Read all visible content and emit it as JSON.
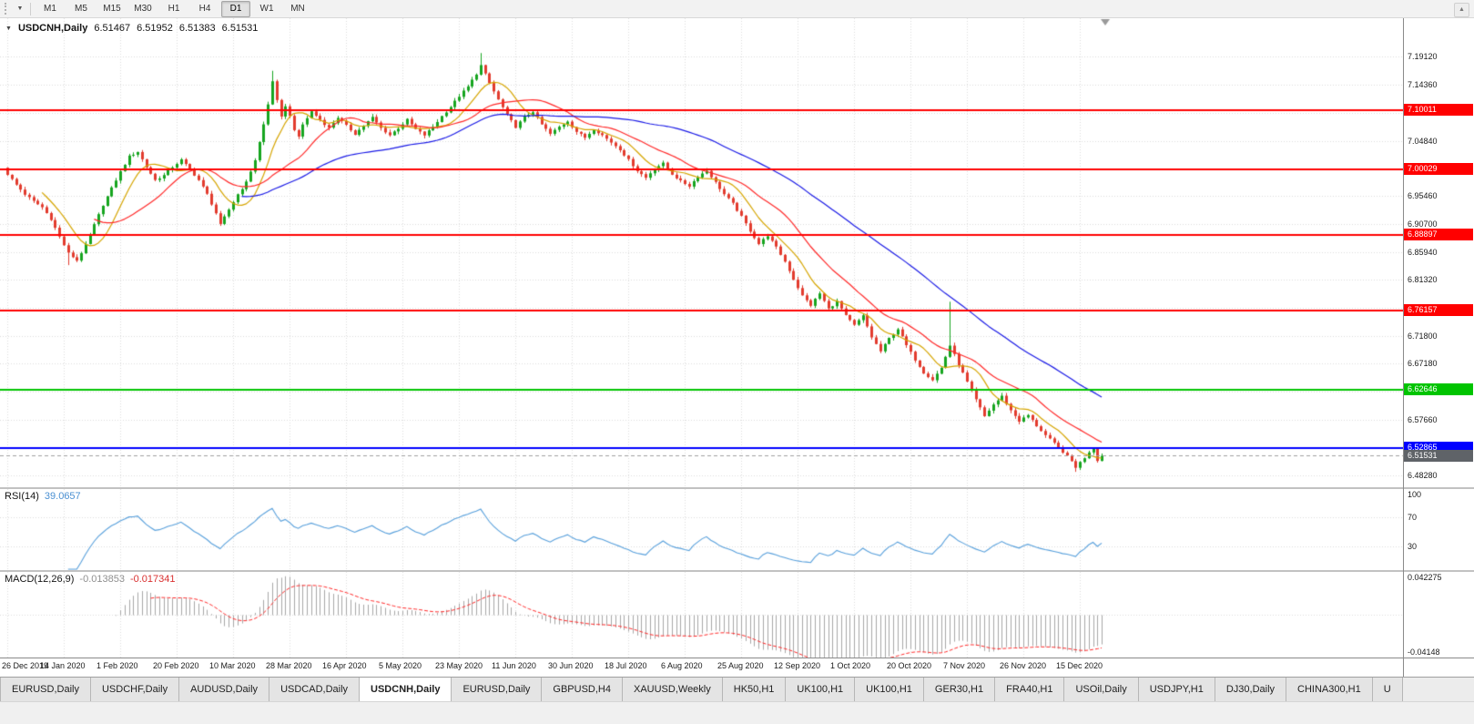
{
  "icons": {
    "title_caret": "▼",
    "toolbar_caret": "▼",
    "corner_marker": "▲"
  },
  "toolbar": {
    "timeframes": [
      "M1",
      "M5",
      "M15",
      "M30",
      "H1",
      "H4",
      "D1",
      "W1",
      "MN"
    ],
    "active_timeframe": "D1"
  },
  "chart_header": {
    "title": "USDCNH,Daily",
    "open": "6.51467",
    "high": "6.51952",
    "low": "6.51383",
    "close": "6.51531"
  },
  "panels": {
    "rsi": {
      "label": "RSI(14)",
      "value": "39.0657"
    },
    "macd": {
      "label": "MACD(12,26,9)",
      "main_value": "-0.013853",
      "signal_value": "-0.017341"
    }
  },
  "badges": {
    "bid": "6.51531"
  },
  "tabs": {
    "active_index": 4,
    "items": [
      "EURUSD,Daily",
      "USDCHF,Daily",
      "AUDUSD,Daily",
      "USDCAD,Daily",
      "USDCNH,Daily",
      "EURUSD,Daily",
      "GBPUSD,H4",
      "XAUUSD,Weekly",
      "HK50,H1",
      "UK100,H1",
      "UK100,H1",
      "GER30,H1",
      "FRA40,H1",
      "USOil,Daily",
      "USDJPY,H1",
      "DJ30,Daily",
      "CHINA300,H1",
      "U"
    ]
  },
  "chart_data": {
    "type": "candlestick",
    "symbol": "USDCNH",
    "timeframe": "Daily",
    "last_ohlc": {
      "open": 6.51467,
      "high": 6.51952,
      "low": 6.51383,
      "close": 6.51531
    },
    "x_axis": {
      "bar_count": 253,
      "bars_per_label": 13,
      "labels": [
        "26 Dec 2019",
        "14 Jan 2020",
        "1 Feb 2020",
        "20 Feb 2020",
        "10 Mar 2020",
        "28 Mar 2020",
        "16 Apr 2020",
        "5 May 2020",
        "23 May 2020",
        "11 Jun 2020",
        "30 Jun 2020",
        "18 Jul 2020",
        "6 Aug 2020",
        "25 Aug 2020",
        "12 Sep 2020",
        "1 Oct 2020",
        "20 Oct 2020",
        "7 Nov 2020",
        "26 Nov 2020",
        "15 Dec 2020"
      ]
    },
    "y_axis": {
      "plot_top_price": 7.256,
      "plot_bottom_price": 6.462,
      "ticks": [
        "7.19120",
        "7.14360",
        "7.09600",
        "7.04840",
        "7.00080",
        "6.95460",
        "6.90700",
        "6.85940",
        "6.81320",
        "6.76560",
        "6.71800",
        "6.67180",
        "6.62420",
        "6.57660",
        "6.52900",
        "6.48280"
      ]
    },
    "close_anchors": [
      [
        0,
        6.992
      ],
      [
        2,
        6.974
      ],
      [
        4,
        6.958
      ],
      [
        6,
        6.946
      ],
      [
        8,
        6.936
      ],
      [
        10,
        6.916
      ],
      [
        12,
        6.886
      ],
      [
        14,
        6.858
      ],
      [
        16,
        6.846
      ],
      [
        18,
        6.872
      ],
      [
        20,
        6.906
      ],
      [
        22,
        6.94
      ],
      [
        24,
        6.968
      ],
      [
        26,
        6.996
      ],
      [
        28,
        7.022
      ],
      [
        30,
        7.03
      ],
      [
        32,
        7.004
      ],
      [
        34,
        6.982
      ],
      [
        36,
        6.99
      ],
      [
        38,
        7.004
      ],
      [
        40,
        7.016
      ],
      [
        42,
        7.0
      ],
      [
        44,
        6.982
      ],
      [
        46,
        6.958
      ],
      [
        48,
        6.926
      ],
      [
        49,
        6.906
      ],
      [
        51,
        6.932
      ],
      [
        53,
        6.958
      ],
      [
        55,
        6.978
      ],
      [
        57,
        7.016
      ],
      [
        59,
        7.076
      ],
      [
        60,
        7.11
      ],
      [
        61,
        7.15
      ],
      [
        62,
        7.116
      ],
      [
        63,
        7.088
      ],
      [
        64,
        7.108
      ],
      [
        65,
        7.09
      ],
      [
        66,
        7.068
      ],
      [
        67,
        7.054
      ],
      [
        68,
        7.076
      ],
      [
        70,
        7.098
      ],
      [
        72,
        7.084
      ],
      [
        74,
        7.07
      ],
      [
        76,
        7.088
      ],
      [
        78,
        7.074
      ],
      [
        80,
        7.06
      ],
      [
        82,
        7.074
      ],
      [
        84,
        7.088
      ],
      [
        86,
        7.07
      ],
      [
        88,
        7.058
      ],
      [
        90,
        7.07
      ],
      [
        92,
        7.084
      ],
      [
        94,
        7.068
      ],
      [
        96,
        7.058
      ],
      [
        98,
        7.072
      ],
      [
        100,
        7.09
      ],
      [
        102,
        7.106
      ],
      [
        104,
        7.124
      ],
      [
        106,
        7.14
      ],
      [
        108,
        7.162
      ],
      [
        109,
        7.176
      ],
      [
        111,
        7.146
      ],
      [
        113,
        7.118
      ],
      [
        115,
        7.092
      ],
      [
        117,
        7.072
      ],
      [
        119,
        7.088
      ],
      [
        121,
        7.098
      ],
      [
        123,
        7.076
      ],
      [
        125,
        7.06
      ],
      [
        127,
        7.072
      ],
      [
        129,
        7.082
      ],
      [
        131,
        7.064
      ],
      [
        133,
        7.054
      ],
      [
        135,
        7.068
      ],
      [
        137,
        7.058
      ],
      [
        139,
        7.046
      ],
      [
        141,
        7.034
      ],
      [
        143,
        7.016
      ],
      [
        145,
        6.998
      ],
      [
        147,
        6.986
      ],
      [
        149,
        7.002
      ],
      [
        151,
        7.01
      ],
      [
        153,
        6.992
      ],
      [
        155,
        6.98
      ],
      [
        157,
        6.972
      ],
      [
        159,
        6.988
      ],
      [
        161,
        6.998
      ],
      [
        163,
        6.978
      ],
      [
        165,
        6.958
      ],
      [
        167,
        6.942
      ],
      [
        169,
        6.92
      ],
      [
        171,
        6.896
      ],
      [
        173,
        6.874
      ],
      [
        175,
        6.888
      ],
      [
        177,
        6.868
      ],
      [
        179,
        6.844
      ],
      [
        181,
        6.814
      ],
      [
        183,
        6.786
      ],
      [
        185,
        6.77
      ],
      [
        187,
        6.79
      ],
      [
        189,
        6.764
      ],
      [
        191,
        6.776
      ],
      [
        193,
        6.752
      ],
      [
        195,
        6.736
      ],
      [
        197,
        6.752
      ],
      [
        199,
        6.716
      ],
      [
        201,
        6.692
      ],
      [
        203,
        6.714
      ],
      [
        205,
        6.73
      ],
      [
        207,
        6.702
      ],
      [
        209,
        6.678
      ],
      [
        211,
        6.656
      ],
      [
        213,
        6.644
      ],
      [
        215,
        6.664
      ],
      [
        217,
        6.702
      ],
      [
        219,
        6.67
      ],
      [
        221,
        6.64
      ],
      [
        223,
        6.61
      ],
      [
        225,
        6.582
      ],
      [
        227,
        6.602
      ],
      [
        229,
        6.616
      ],
      [
        231,
        6.592
      ],
      [
        233,
        6.574
      ],
      [
        235,
        6.584
      ],
      [
        237,
        6.566
      ],
      [
        239,
        6.55
      ],
      [
        241,
        6.536
      ],
      [
        243,
        6.522
      ],
      [
        245,
        6.506
      ],
      [
        246,
        6.496
      ],
      [
        247,
        6.504
      ],
      [
        248,
        6.512
      ],
      [
        249,
        6.522
      ],
      [
        250,
        6.528
      ],
      [
        251,
        6.508
      ],
      [
        252,
        6.515
      ]
    ],
    "noise_amplitude": 0.0035,
    "wick_events": [
      {
        "i": 14,
        "low": 6.838
      },
      {
        "i": 61,
        "high": 7.167
      },
      {
        "i": 109,
        "high": 7.197
      },
      {
        "i": 217,
        "high": 6.776
      },
      {
        "i": 246,
        "low": 6.488
      }
    ],
    "candle_colors": {
      "up": "#16a51f",
      "down": "#e23b2e"
    },
    "moving_averages": [
      {
        "period": 9,
        "color": "#d6a500"
      },
      {
        "period": 21,
        "color": "#ff2a2a"
      },
      {
        "period": 55,
        "color": "#1a1ae6"
      }
    ],
    "horizontal_lines": [
      {
        "value": 7.10011,
        "color": "#ff0000"
      },
      {
        "value": 7.00029,
        "color": "#ff0000"
      },
      {
        "value": 6.88897,
        "color": "#ff0000"
      },
      {
        "value": 6.76157,
        "color": "#ff0000"
      },
      {
        "value": 6.62646,
        "color": "#00c400"
      },
      {
        "value": 6.52865,
        "color": "#0000ff"
      }
    ],
    "bid_price": 6.51531,
    "bid_badge_color": "#5f6368",
    "rsi": {
      "period": 14,
      "last_value": 39.0657,
      "levels": [
        70,
        30
      ],
      "scale": [
        0,
        100
      ],
      "color": "#58a0dc",
      "ticks": [
        "100",
        "70",
        "30"
      ]
    },
    "macd": {
      "fast": 12,
      "slow": 26,
      "signal_period": 9,
      "last_main": -0.013853,
      "last_signal": -0.017341,
      "scale_top": 0.042275,
      "scale_bottom": -0.04148,
      "ticks_top": "0.042275",
      "ticks_bottom": "-0.04148",
      "histogram_color": "#a8a8a8",
      "signal_color": "#ff2a2a"
    }
  }
}
